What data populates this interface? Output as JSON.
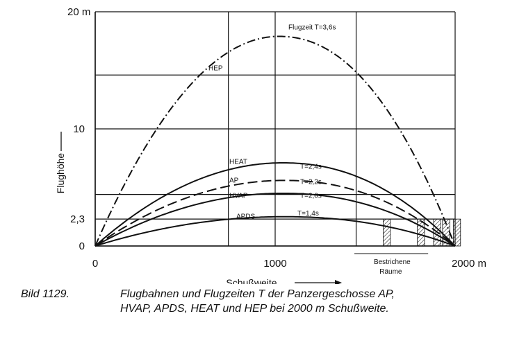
{
  "chart_data": {
    "type": "line",
    "xlabel": "Schußweite",
    "ylabel": "Flughöhe",
    "xlim": [
      0,
      2000
    ],
    "ylim": [
      0,
      20
    ],
    "x_ticks": [
      {
        "value": 0,
        "label": "0"
      },
      {
        "value": 1000,
        "label": "1000"
      },
      {
        "value": 2000,
        "label": "2000 m"
      }
    ],
    "y_ticks": [
      {
        "value": 0,
        "label": "0"
      },
      {
        "value": 2.3,
        "label": "2,3"
      },
      {
        "value": 10,
        "label": "10"
      },
      {
        "value": 20,
        "label": "20 m"
      }
    ],
    "grid": true,
    "x_grid": [
      0,
      740,
      1000,
      1450,
      2000
    ],
    "y_grid": [
      0,
      2.3,
      4.4,
      10,
      14.6,
      20
    ],
    "series": [
      {
        "name": "HEP",
        "style": "dash-dot",
        "max_height": 17.9,
        "apex_x": 1020,
        "range": 2000,
        "time_label": "Flugzeit  T=3,6s"
      },
      {
        "name": "HEAT",
        "style": "solid",
        "max_height": 7.1,
        "apex_x": 1040,
        "range": 2000,
        "time_label": "T=2,4s"
      },
      {
        "name": "AP",
        "style": "dashed",
        "max_height": 5.6,
        "apex_x": 1050,
        "range": 2000,
        "time_label": "T=2,2s"
      },
      {
        "name": "HVAP",
        "style": "solid",
        "max_height": 4.5,
        "apex_x": 1040,
        "range": 2000,
        "time_label": "T=2,0s"
      },
      {
        "name": "APDS",
        "style": "solid",
        "max_height": 2.5,
        "apex_x": 1050,
        "range": 2000,
        "time_label": "T=1,4s"
      }
    ],
    "danger_zone_label": [
      "Bestrichene",
      "Räume"
    ],
    "danger_zones": [
      {
        "from": 1600,
        "to": 1640
      },
      {
        "from": 1790,
        "to": 1830
      },
      {
        "from": 1880,
        "to": 1920
      },
      {
        "from": 1930,
        "to": 1970
      },
      {
        "from": 1990,
        "to": 2030
      }
    ]
  },
  "caption": {
    "number": "Bild 1129.",
    "line1": "Flugbahnen und Flugzeiten T   der  Panzergeschosse  AP,",
    "line2": "HVAP,  APDS,  HEAT und  HEP bei 2000 m  Schußweite."
  }
}
